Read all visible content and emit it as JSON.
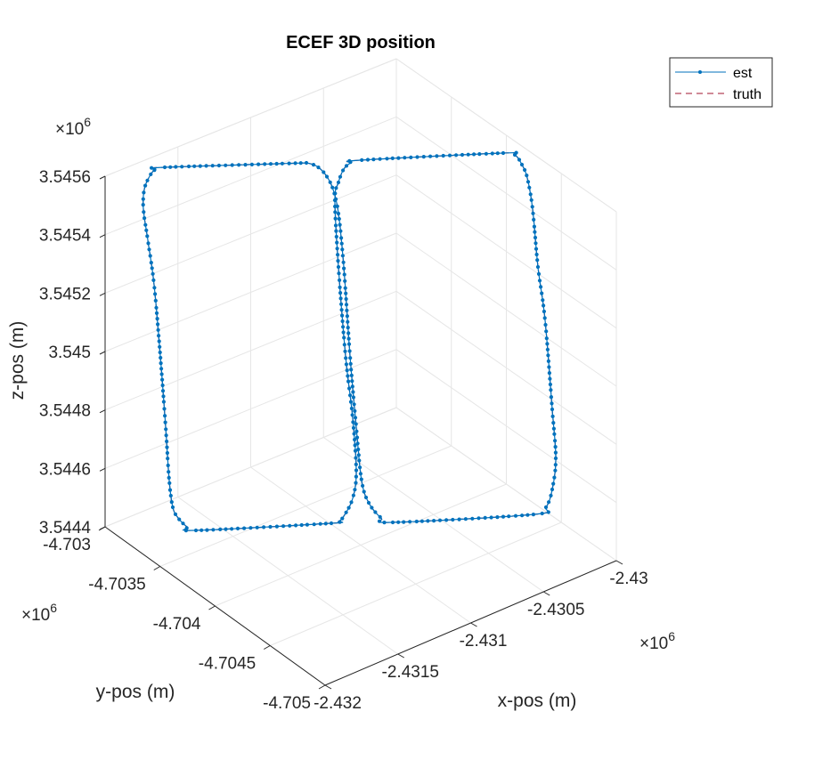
{
  "chart_data": {
    "type": "line",
    "projection": "3d",
    "title": "ECEF 3D position",
    "xlabel": "x-pos (m)",
    "ylabel": "y-pos (m)",
    "zlabel": "z-pos (m)",
    "x_exponent": "×10^6",
    "y_exponent": "×10^6",
    "z_exponent": "×10^6",
    "x_ticks": [
      "-2.432",
      "-2.4315",
      "-2.431",
      "-2.4305",
      "-2.43"
    ],
    "y_ticks": [
      "-4.703",
      "-4.7035",
      "-4.704",
      "-4.7045",
      "-4.705"
    ],
    "z_ticks": [
      "3.5444",
      "3.5446",
      "3.5448",
      "3.545",
      "3.5452",
      "3.5454",
      "3.5456"
    ],
    "grid": true,
    "legend_position": "top-right",
    "legend": [
      "est",
      "truth"
    ],
    "series": [
      {
        "name": "est",
        "style": "solid line with dot markers",
        "color": "#0072BD",
        "path_2d_projection": [
          [
            345,
            183
          ],
          [
            356,
            187
          ],
          [
            366,
            197
          ],
          [
            374,
            213
          ],
          [
            380,
            240
          ],
          [
            386,
            300
          ],
          [
            393,
            400
          ],
          [
            400,
            480
          ],
          [
            406,
            540
          ],
          [
            414,
            565
          ],
          [
            428,
            582
          ],
          [
            441,
            587
          ],
          [
            600,
            578
          ],
          [
            613,
            570
          ],
          [
            620,
            550
          ],
          [
            624,
            515
          ],
          [
            620,
            460
          ],
          [
            612,
            360
          ],
          [
            604,
            300
          ],
          [
            598,
            235
          ],
          [
            592,
            200
          ],
          [
            586,
            185
          ],
          [
            578,
            174
          ],
          [
            565,
            172
          ],
          [
            404,
            180
          ],
          [
            394,
            183
          ],
          [
            386,
            190
          ],
          [
            380,
            205
          ],
          [
            376,
            225
          ],
          [
            380,
            300
          ],
          [
            388,
            400
          ],
          [
            396,
            470
          ],
          [
            400,
            530
          ],
          [
            396,
            560
          ],
          [
            386,
            580
          ],
          [
            380,
            586
          ],
          [
            372,
            588
          ],
          [
            220,
            596
          ],
          [
            210,
            592
          ],
          [
            200,
            582
          ],
          [
            194,
            570
          ],
          [
            190,
            540
          ],
          [
            186,
            480
          ],
          [
            180,
            400
          ],
          [
            173,
            320
          ],
          [
            166,
            270
          ],
          [
            161,
            235
          ],
          [
            162,
            213
          ],
          [
            168,
            198
          ],
          [
            175,
            190
          ],
          [
            185,
            188
          ],
          [
            345,
            183
          ]
        ]
      },
      {
        "name": "truth",
        "style": "dashed line",
        "color": "#D95319"
      }
    ]
  }
}
